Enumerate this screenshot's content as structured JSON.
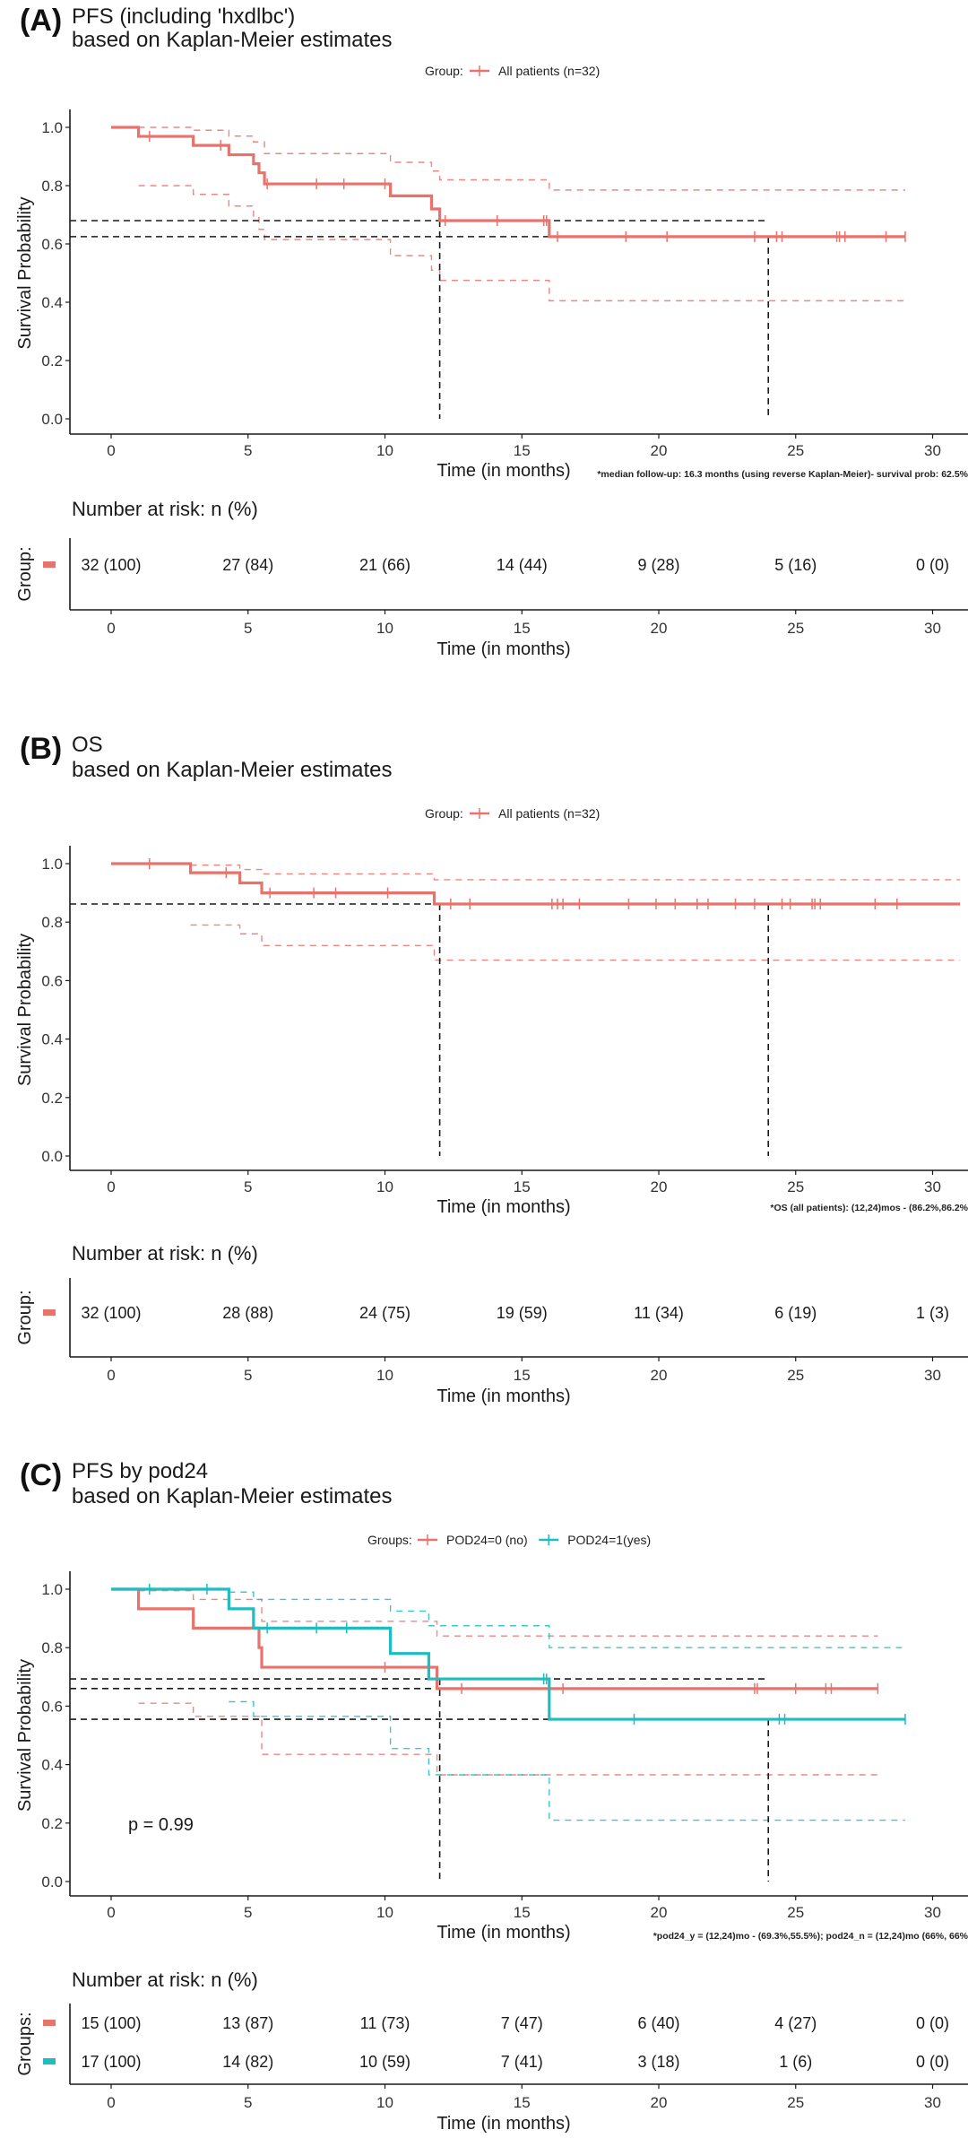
{
  "colors": {
    "red": "#E8736C",
    "teal": "#1FBCC0",
    "reference": "#1a1a1a",
    "axis": "#1a1a1a"
  },
  "chart_data": [
    {
      "type": "line",
      "subtype": "kaplan-meier",
      "panel_letter": "(A)",
      "title": "PFS (including 'hxdlbc')",
      "subtitle": "based on Kaplan-Meier estimates",
      "legend_title": "Group:",
      "legend_placement": "top-center",
      "xlabel": "Time (in months)",
      "ylabel": "Survival Probability",
      "xlim": [
        -1.5,
        31
      ],
      "ylim": [
        0,
        1
      ],
      "x_ticks": [
        0,
        5,
        10,
        15,
        20,
        25,
        30
      ],
      "y_ticks": [
        0.0,
        0.2,
        0.4,
        0.6,
        0.8,
        1.0
      ],
      "y_tick_labels": [
        "0.0",
        "0.2",
        "0.4",
        "0.6",
        "0.8",
        "1.0"
      ],
      "grid": false,
      "footnote": "*median follow-up: 16.3 months (using reverse Kaplan-Meier)- survival prob: 62.5%",
      "reference_lines": {
        "horizontal": [
          0.68,
          0.625
        ],
        "vertical": [
          12,
          24
        ]
      },
      "series": [
        {
          "name": "All patients (n=32)",
          "color_key": "red",
          "steps": [
            [
              0,
              1.0
            ],
            [
              1.0,
              0.969
            ],
            [
              3.0,
              0.938
            ],
            [
              4.3,
              0.906
            ],
            [
              5.2,
              0.875
            ],
            [
              5.4,
              0.844
            ],
            [
              5.6,
              0.806
            ],
            [
              10.2,
              0.765
            ],
            [
              11.7,
              0.72
            ],
            [
              12.0,
              0.68
            ],
            [
              16.0,
              0.625
            ]
          ],
          "end_time": 29.0,
          "censor_times": [
            1.4,
            4.0,
            5.7,
            7.5,
            8.5,
            10.0,
            12.2,
            14.1,
            15.8,
            15.9,
            16.3,
            18.8,
            20.3,
            23.5,
            24.3,
            24.5,
            26.5,
            26.6,
            26.8,
            28.3,
            29.0
          ],
          "ci_upper": [
            [
              1.0,
              1.0
            ],
            [
              3.0,
              0.99
            ],
            [
              4.3,
              0.97
            ],
            [
              5.2,
              0.95
            ],
            [
              5.6,
              0.91
            ],
            [
              10.2,
              0.88
            ],
            [
              11.7,
              0.85
            ],
            [
              12.0,
              0.82
            ],
            [
              16.0,
              0.785
            ]
          ],
          "ci_lower": [
            [
              1.0,
              0.8
            ],
            [
              3.0,
              0.77
            ],
            [
              4.3,
              0.73
            ],
            [
              5.2,
              0.69
            ],
            [
              5.4,
              0.65
            ],
            [
              5.6,
              0.615
            ],
            [
              10.2,
              0.56
            ],
            [
              11.7,
              0.51
            ],
            [
              12.0,
              0.475
            ],
            [
              16.0,
              0.405
            ]
          ],
          "ci_end_time": 29.0
        }
      ],
      "risk_table": {
        "title": "Number at risk: n (%)",
        "y_label": "Group:",
        "x_ticks": [
          0,
          5,
          10,
          15,
          20,
          25,
          30
        ],
        "xlabel": "Time (in months)",
        "rows": [
          {
            "color_key": "red",
            "values": [
              "32 (100)",
              "27 (84)",
              "21 (66)",
              "14 (44)",
              "9 (28)",
              "5 (16)",
              "0 (0)"
            ]
          }
        ]
      }
    },
    {
      "type": "line",
      "subtype": "kaplan-meier",
      "panel_letter": "(B)",
      "title": "OS",
      "subtitle": "based on Kaplan-Meier estimates",
      "legend_title": "Group:",
      "legend_placement": "top-center",
      "xlabel": "Time (in months)",
      "ylabel": "Survival Probability",
      "xlim": [
        -1.5,
        31
      ],
      "ylim": [
        0,
        1
      ],
      "x_ticks": [
        0,
        5,
        10,
        15,
        20,
        25,
        30
      ],
      "y_ticks": [
        0.0,
        0.2,
        0.4,
        0.6,
        0.8,
        1.0
      ],
      "y_tick_labels": [
        "0.0",
        "0.2",
        "0.4",
        "0.6",
        "0.8",
        "1.0"
      ],
      "grid": false,
      "footnote": "*OS (all patients): (12,24)mos - (86.2%,86.2%",
      "reference_lines": {
        "horizontal": [
          0.862
        ],
        "vertical": [
          12,
          24
        ]
      },
      "series": [
        {
          "name": "All patients (n=32)",
          "color_key": "red",
          "steps": [
            [
              0,
              1.0
            ],
            [
              2.9,
              0.969
            ],
            [
              4.7,
              0.934
            ],
            [
              5.5,
              0.9
            ],
            [
              11.8,
              0.862
            ]
          ],
          "end_time": 31.0,
          "censor_times": [
            1.4,
            4.2,
            5.8,
            7.4,
            8.2,
            10.1,
            12.4,
            13.1,
            16.1,
            16.3,
            16.5,
            17.1,
            18.9,
            19.9,
            20.6,
            21.4,
            21.8,
            22.8,
            23.5,
            24.5,
            24.8,
            25.6,
            25.7,
            25.9,
            27.9,
            28.7
          ],
          "ci_upper": [
            [
              2.9,
              0.995
            ],
            [
              4.7,
              0.98
            ],
            [
              5.5,
              0.965
            ],
            [
              11.8,
              0.945
            ]
          ],
          "ci_lower": [
            [
              2.9,
              0.79
            ],
            [
              4.7,
              0.76
            ],
            [
              5.5,
              0.72
            ],
            [
              11.8,
              0.67
            ]
          ],
          "ci_end_time": 31.0
        }
      ],
      "risk_table": {
        "title": "Number at risk: n (%)",
        "y_label": "Group:",
        "x_ticks": [
          0,
          5,
          10,
          15,
          20,
          25,
          30
        ],
        "xlabel": "Time (in months)",
        "rows": [
          {
            "color_key": "red",
            "values": [
              "32 (100)",
              "28 (88)",
              "24 (75)",
              "19 (59)",
              "11 (34)",
              "6 (19)",
              "1 (3)"
            ]
          }
        ]
      }
    },
    {
      "type": "line",
      "subtype": "kaplan-meier",
      "panel_letter": "(C)",
      "title": "PFS by pod24",
      "subtitle": "based on Kaplan-Meier estimates",
      "legend_title": "Groups:",
      "legend_placement": "top-center",
      "xlabel": "Time (in months)",
      "ylabel": "Survival Probability",
      "xlim": [
        -1.5,
        31
      ],
      "ylim": [
        0,
        1
      ],
      "x_ticks": [
        0,
        5,
        10,
        15,
        20,
        25,
        30
      ],
      "y_ticks": [
        0.0,
        0.2,
        0.4,
        0.6,
        0.8,
        1.0
      ],
      "y_tick_labels": [
        "0.0",
        "0.2",
        "0.4",
        "0.6",
        "0.8",
        "1.0"
      ],
      "grid": false,
      "annotation": "p = 0.99",
      "footnote": "*pod24_y = (12,24)mo - (69.3%,55.5%); pod24_n = (12,24)mo (66%, 66%",
      "reference_lines": {
        "horizontal": [
          0.693,
          0.66,
          0.555
        ],
        "vertical": [
          12,
          24
        ]
      },
      "series": [
        {
          "name": "POD24=0 (no)",
          "color_key": "red",
          "steps": [
            [
              0,
              1.0
            ],
            [
              1.0,
              0.933
            ],
            [
              3.0,
              0.867
            ],
            [
              5.4,
              0.8
            ],
            [
              5.5,
              0.733
            ],
            [
              11.9,
              0.66
            ]
          ],
          "start_time": 1.0,
          "end_time": 28.0,
          "censor_times": [
            10.0,
            12.8,
            16.5,
            23.5,
            23.6,
            25.0,
            26.1,
            26.3,
            28.0
          ],
          "ci_upper": [
            [
              1.0,
              0.995
            ],
            [
              3.0,
              0.965
            ],
            [
              5.5,
              0.89
            ],
            [
              11.9,
              0.84
            ]
          ],
          "ci_lower": [
            [
              1.0,
              0.61
            ],
            [
              3.0,
              0.565
            ],
            [
              5.5,
              0.435
            ],
            [
              11.9,
              0.365
            ]
          ],
          "ci_end_time": 28.0
        },
        {
          "name": "POD24=1(yes)",
          "color_key": "teal",
          "steps": [
            [
              0,
              1.0
            ],
            [
              4.3,
              0.933
            ],
            [
              5.2,
              0.867
            ],
            [
              10.2,
              0.78
            ],
            [
              11.6,
              0.693
            ],
            [
              16.0,
              0.555
            ]
          ],
          "end_time": 29.0,
          "censor_times": [
            1.4,
            3.5,
            5.7,
            7.5,
            8.6,
            15.8,
            15.9,
            19.1,
            24.4,
            24.6,
            29.0
          ],
          "ci_upper": [
            [
              4.3,
              0.99
            ],
            [
              5.2,
              0.965
            ],
            [
              10.2,
              0.925
            ],
            [
              11.6,
              0.875
            ],
            [
              16.0,
              0.8
            ]
          ],
          "ci_lower": [
            [
              4.3,
              0.615
            ],
            [
              5.2,
              0.565
            ],
            [
              10.2,
              0.455
            ],
            [
              11.6,
              0.365
            ],
            [
              16.0,
              0.21
            ]
          ],
          "ci_end_time": 29.0
        }
      ],
      "risk_table": {
        "title": "Number at risk: n (%)",
        "y_label": "Groups:",
        "x_ticks": [
          0,
          5,
          10,
          15,
          20,
          25,
          30
        ],
        "xlabel": "Time (in months)",
        "rows": [
          {
            "color_key": "red",
            "values": [
              "15 (100)",
              "13 (87)",
              "11 (73)",
              "7 (47)",
              "6 (40)",
              "4 (27)",
              "0 (0)"
            ]
          },
          {
            "color_key": "teal",
            "values": [
              "17 (100)",
              "14 (82)",
              "10 (59)",
              "7 (41)",
              "3 (18)",
              "1 (6)",
              "0 (0)"
            ]
          }
        ]
      }
    }
  ]
}
